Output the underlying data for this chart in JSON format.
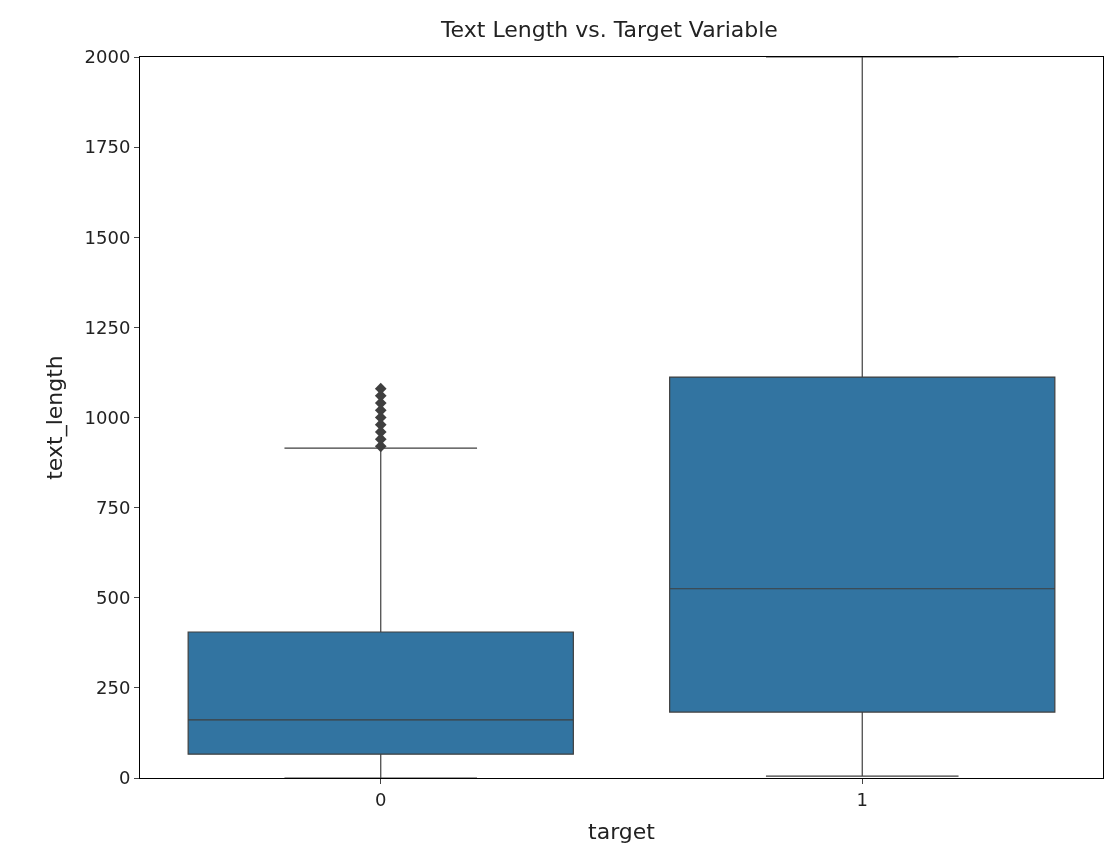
{
  "chart_data": {
    "type": "box",
    "title": "Text Length vs. Target Variable",
    "xlabel": "target",
    "ylabel": "text_length",
    "categories": [
      "0",
      "1"
    ],
    "boxes": [
      {
        "low": 0,
        "q1": 66,
        "median": 161,
        "q3": 405,
        "high": 915,
        "outliers": [
          920,
          940,
          960,
          980,
          1000,
          1020,
          1040,
          1060,
          1080
        ]
      },
      {
        "low": 5,
        "q1": 183,
        "median": 525,
        "q3": 1112,
        "high": 2000
      }
    ],
    "color": "#3274a1",
    "ylim": [
      0,
      2000
    ],
    "yticks": [
      0,
      250,
      500,
      750,
      1000,
      1250,
      1500,
      1750,
      2000
    ]
  }
}
